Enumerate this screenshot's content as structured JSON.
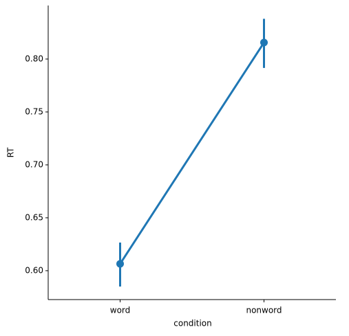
{
  "chart_data": {
    "type": "point",
    "x_label": "condition",
    "y_label": "RT",
    "categories": [
      "word",
      "nonword"
    ],
    "values": [
      0.6065,
      0.8156
    ],
    "ci_low": [
      0.585,
      0.7916
    ],
    "ci_high": [
      0.6266,
      0.838
    ],
    "color": "#1f77b4",
    "ylim": [
      0.5727,
      0.8506
    ],
    "yticks": [
      {
        "value": 0.6,
        "label": "0.60"
      },
      {
        "value": 0.65,
        "label": "0.65"
      },
      {
        "value": 0.7,
        "label": "0.70"
      },
      {
        "value": 0.75,
        "label": "0.75"
      },
      {
        "value": 0.8,
        "label": "0.80"
      }
    ],
    "grid": false
  }
}
